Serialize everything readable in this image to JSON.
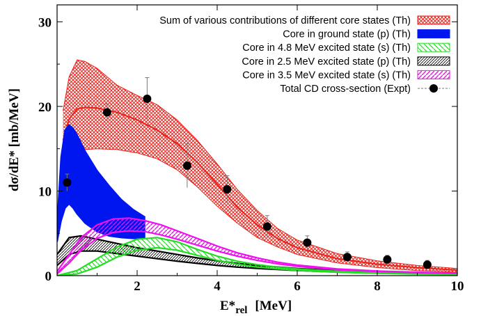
{
  "chart_data": {
    "type": "area",
    "xlabel": "E*",
    "xlabel_sub": "rel",
    "xlabel_unit": "[MeV]",
    "ylabel": "dσ/dE* [mb/MeV]",
    "xlim": [
      0,
      10
    ],
    "ylim": [
      0,
      32
    ],
    "x_ticks": [
      2,
      4,
      6,
      8,
      10
    ],
    "x_tick_labels": [
      "2",
      "4",
      "6",
      "8",
      "10"
    ],
    "y_ticks": [
      0,
      10,
      20,
      30
    ],
    "y_tick_labels": [
      "0",
      "10",
      "20",
      "30"
    ],
    "grid": false,
    "legend_position": "top-right",
    "series": [
      {
        "name": "Sum of various contributions of different core states  (Th)",
        "color": "#e8231c",
        "style": "crosshatch",
        "x": [
          0.15,
          0.3,
          0.5,
          0.7,
          1.0,
          1.5,
          2.0,
          2.5,
          3.0,
          3.5,
          4.0,
          4.5,
          5.0,
          5.5,
          6.0,
          7.0,
          8.0,
          9.0,
          10.0
        ],
        "upper": [
          19.5,
          23.5,
          25.5,
          25.3,
          24.5,
          22.5,
          21.3,
          20.2,
          18.4,
          16.0,
          13.2,
          10.2,
          7.7,
          5.6,
          4.2,
          2.6,
          1.75,
          1.2,
          0.85
        ],
        "lower": [
          10.5,
          13.0,
          14.5,
          14.9,
          15.0,
          14.9,
          14.5,
          13.8,
          12.5,
          10.5,
          8.2,
          6.2,
          4.5,
          3.4,
          2.5,
          1.5,
          0.95,
          0.6,
          0.4
        ],
        "center": [
          16.0,
          18.5,
          19.7,
          19.9,
          19.8,
          19.3,
          18.4,
          17.2,
          15.6,
          13.4,
          10.8,
          8.1,
          6.0,
          4.4,
          3.3,
          2.0,
          1.35,
          0.95,
          0.65
        ]
      },
      {
        "name": "Core in ground state (p) (Th)",
        "color": "#0016ee",
        "style": "solid",
        "x": [
          0.0,
          0.1,
          0.2,
          0.3,
          0.4,
          0.5,
          0.7,
          1.0,
          1.3,
          1.6,
          1.9,
          2.2
        ],
        "upper": [
          6.0,
          14.0,
          17.2,
          17.8,
          17.4,
          16.6,
          14.7,
          12.4,
          10.6,
          9.0,
          7.8,
          6.9
        ],
        "lower": [
          4.0,
          6.5,
          8.0,
          8.5,
          8.0,
          7.3,
          6.2,
          5.2,
          4.7,
          4.5,
          4.4,
          4.4
        ]
      },
      {
        "name": "Core in 4.8 MeV excited state (s) (Th)",
        "color": "#22dd22",
        "style": "diagonal",
        "x": [
          0.0,
          0.5,
          1.0,
          1.5,
          2.0,
          2.5,
          3.0,
          3.5,
          4.0,
          4.5,
          5.0,
          5.5,
          6.0,
          6.5,
          7.0,
          8.0,
          9.0,
          10.0
        ],
        "upper": [
          0.0,
          0.6,
          2.0,
          3.4,
          4.3,
          4.5,
          4.0,
          3.1,
          2.3,
          1.7,
          1.3,
          1.0,
          0.8,
          0.65,
          0.52,
          0.35,
          0.25,
          0.18
        ],
        "lower": [
          0.0,
          0.2,
          1.0,
          2.2,
          3.0,
          3.3,
          3.0,
          2.4,
          1.8,
          1.35,
          1.0,
          0.8,
          0.62,
          0.5,
          0.4,
          0.27,
          0.18,
          0.13
        ]
      },
      {
        "name": "Core in 2.5 MeV excited state (p) (Th)",
        "color": "#000000",
        "style": "dotted",
        "x": [
          0.0,
          0.3,
          0.6,
          1.0,
          1.5,
          2.0,
          2.5,
          3.0,
          3.5,
          4.0,
          4.5,
          5.0,
          6.0,
          7.0,
          8.0,
          9.0,
          10.0
        ],
        "upper": [
          2.5,
          4.5,
          4.7,
          4.3,
          3.8,
          3.3,
          2.9,
          2.5,
          2.1,
          1.75,
          1.45,
          1.2,
          0.85,
          0.6,
          0.45,
          0.33,
          0.25
        ],
        "lower": [
          1.2,
          2.5,
          2.9,
          2.9,
          2.6,
          2.3,
          2.0,
          1.7,
          1.45,
          1.2,
          1.0,
          0.85,
          0.6,
          0.42,
          0.3,
          0.22,
          0.16
        ]
      },
      {
        "name": "Core in 3.5 MeV excited  state (s) (Th)",
        "color": "#ee11ee",
        "style": "diagonal",
        "x": [
          0.0,
          0.3,
          0.6,
          1.0,
          1.4,
          1.8,
          2.2,
          2.6,
          3.0,
          3.5,
          4.0,
          4.5,
          5.0,
          5.5,
          6.0,
          7.0,
          8.0,
          9.0,
          10.0
        ],
        "upper": [
          0.5,
          2.5,
          4.5,
          6.0,
          6.7,
          6.8,
          6.5,
          6.0,
          5.3,
          4.4,
          3.5,
          2.7,
          2.1,
          1.6,
          1.25,
          0.8,
          0.55,
          0.4,
          0.3
        ],
        "lower": [
          0.2,
          1.5,
          3.0,
          4.4,
          5.1,
          5.3,
          5.2,
          4.8,
          4.3,
          3.6,
          2.9,
          2.3,
          1.8,
          1.4,
          1.1,
          0.7,
          0.48,
          0.35,
          0.26
        ]
      },
      {
        "name": "Total CD cross-section (Expt)",
        "color": "#000000",
        "style": "points",
        "x": [
          0.25,
          1.25,
          2.25,
          3.25,
          4.25,
          5.25,
          6.25,
          7.25,
          8.25,
          9.25
        ],
        "y": [
          11.0,
          19.3,
          20.9,
          13.0,
          10.2,
          5.8,
          3.9,
          2.2,
          1.9,
          1.3
        ],
        "yerr": [
          1.0,
          1.0,
          2.5,
          2.6,
          1.6,
          1.3,
          0.8,
          0.6,
          0.5,
          0.5
        ]
      }
    ]
  }
}
